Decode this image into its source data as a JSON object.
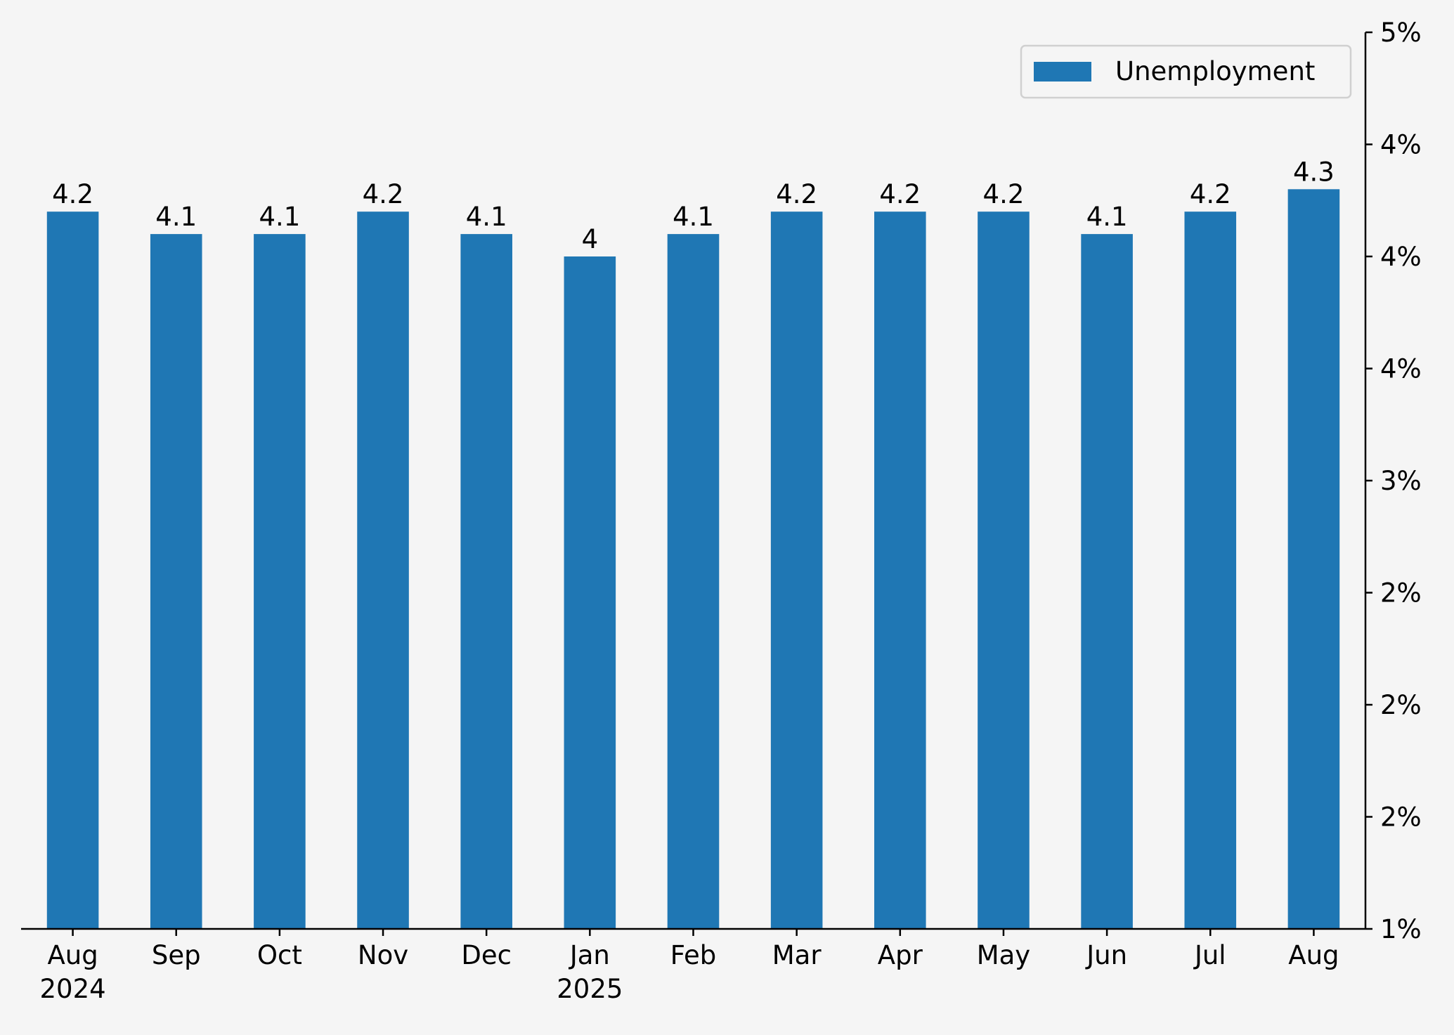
{
  "chart_data": {
    "type": "bar",
    "title": "",
    "xlabel": "",
    "ylabel": "",
    "categories": [
      [
        "Aug",
        "2024"
      ],
      [
        "Sep"
      ],
      [
        "Oct"
      ],
      [
        "Nov"
      ],
      [
        "Dec"
      ],
      [
        "Jan",
        "2025"
      ],
      [
        "Feb"
      ],
      [
        "Mar"
      ],
      [
        "Apr"
      ],
      [
        "May"
      ],
      [
        "Jun"
      ],
      [
        "Jul"
      ],
      [
        "Aug"
      ]
    ],
    "series": [
      {
        "name": "Unemployment",
        "color": "#1f77b4",
        "values": [
          4.2,
          4.1,
          4.1,
          4.2,
          4.1,
          4.0,
          4.1,
          4.2,
          4.2,
          4.2,
          4.1,
          4.2,
          4.3
        ],
        "labels": [
          "4.2",
          "4.1",
          "4.1",
          "4.2",
          "4.1",
          "4",
          "4.1",
          "4.2",
          "4.2",
          "4.2",
          "4.1",
          "4.2",
          "4.3"
        ]
      }
    ],
    "ylim": [
      1.0,
      5.0
    ],
    "yticks": [
      1.0,
      1.5,
      2.0,
      2.5,
      3.0,
      3.5,
      4.0,
      4.5,
      5.0
    ],
    "ytick_labels": [
      "1%",
      "2%",
      "2%",
      "2%",
      "3%",
      "4%",
      "4%",
      "4%",
      "5%"
    ],
    "y_axis_position": "right",
    "grid": false,
    "legend": "top-right"
  }
}
